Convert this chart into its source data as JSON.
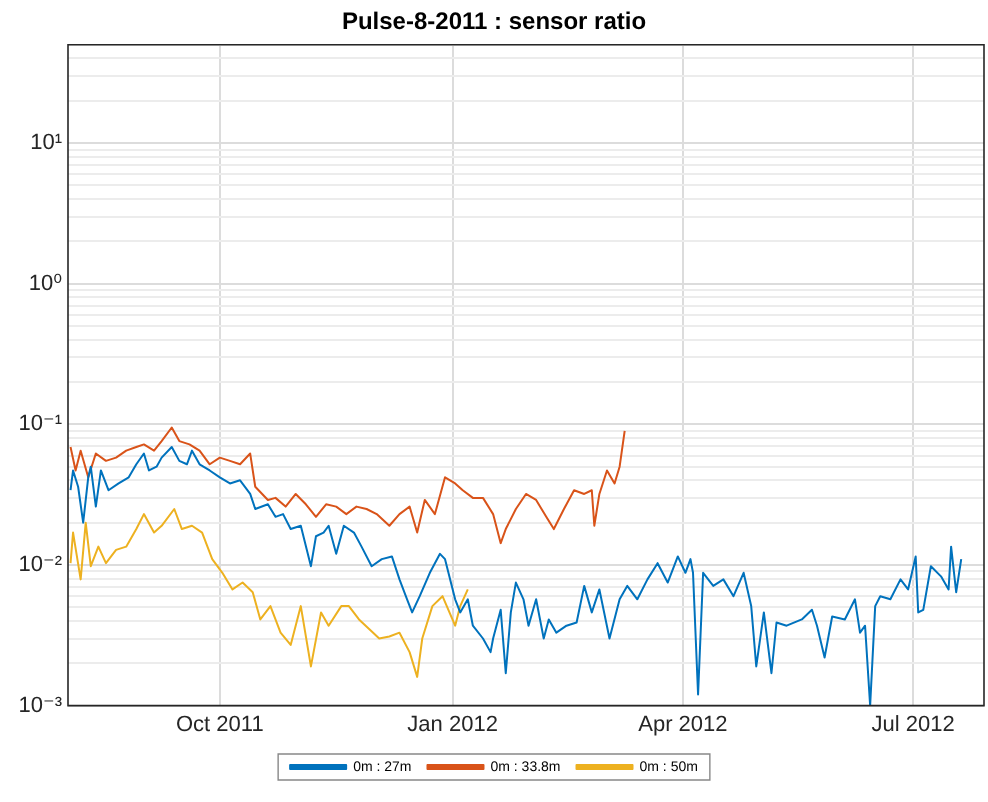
{
  "chart_data": {
    "type": "line",
    "title": "Pulse-8-2011 : sensor ratio",
    "log": "y",
    "grid": true,
    "legend": "bottom",
    "marker": "none",
    "xlim": [
      "2011-08-02",
      "2012-07-29"
    ],
    "xticks": [
      {
        "value": "2011-10-01",
        "label": "Oct 2011"
      },
      {
        "value": "2012-01-01",
        "label": "Jan 2012"
      },
      {
        "value": "2012-04-01",
        "label": "Apr 2012"
      },
      {
        "value": "2012-07-01",
        "label": "Jul 2012"
      }
    ],
    "ylim": [
      0.001,
      50
    ],
    "yticks": [
      {
        "value": 0.001,
        "label": "10⁻³"
      },
      {
        "value": 0.002,
        "label": null
      },
      {
        "value": 0.003,
        "label": null
      },
      {
        "value": 0.004,
        "label": null
      },
      {
        "value": 0.005,
        "label": null
      },
      {
        "value": 0.006,
        "label": null
      },
      {
        "value": 0.007,
        "label": null
      },
      {
        "value": 0.008,
        "label": null
      },
      {
        "value": 0.009,
        "label": null
      },
      {
        "value": 0.01,
        "label": "10⁻²"
      },
      {
        "value": 0.02,
        "label": null
      },
      {
        "value": 0.03,
        "label": null
      },
      {
        "value": 0.04,
        "label": null
      },
      {
        "value": 0.05,
        "label": null
      },
      {
        "value": 0.06,
        "label": null
      },
      {
        "value": 0.07,
        "label": null
      },
      {
        "value": 0.08,
        "label": null
      },
      {
        "value": 0.09,
        "label": null
      },
      {
        "value": 0.1,
        "label": "10⁻¹"
      },
      {
        "value": 0.2,
        "label": null
      },
      {
        "value": 0.3,
        "label": null
      },
      {
        "value": 0.4,
        "label": null
      },
      {
        "value": 0.5,
        "label": null
      },
      {
        "value": 0.6,
        "label": null
      },
      {
        "value": 0.7,
        "label": null
      },
      {
        "value": 0.8,
        "label": null
      },
      {
        "value": 0.9,
        "label": null
      },
      {
        "value": 1,
        "label": "10⁰"
      },
      {
        "value": 2,
        "label": null
      },
      {
        "value": 3,
        "label": null
      },
      {
        "value": 4,
        "label": null
      },
      {
        "value": 5,
        "label": null
      },
      {
        "value": 6,
        "label": null
      },
      {
        "value": 7,
        "label": null
      },
      {
        "value": 8,
        "label": null
      },
      {
        "value": 9,
        "label": null
      },
      {
        "value": 10,
        "label": "10¹"
      },
      {
        "value": 20,
        "label": null
      },
      {
        "value": 30,
        "label": null
      },
      {
        "value": 40,
        "label": null
      },
      {
        "value": 50,
        "label": null
      }
    ],
    "series": [
      {
        "name": "0m : 27m",
        "color": "#0072bd",
        "x": [
          "2011-08-03",
          "2011-08-04",
          "2011-08-06",
          "2011-08-08",
          "2011-08-10",
          "2011-08-11",
          "2011-08-13",
          "2011-08-15",
          "2011-08-18",
          "2011-08-22",
          "2011-08-26",
          "2011-08-29",
          "2011-09-01",
          "2011-09-03",
          "2011-09-06",
          "2011-09-08",
          "2011-09-12",
          "2011-09-15",
          "2011-09-18",
          "2011-09-20",
          "2011-09-23",
          "2011-09-27",
          "2011-10-01",
          "2011-10-05",
          "2011-10-09",
          "2011-10-13",
          "2011-10-15",
          "2011-10-20",
          "2011-10-23",
          "2011-10-26",
          "2011-10-29",
          "2011-11-02",
          "2011-11-06",
          "2011-11-08",
          "2011-11-11",
          "2011-11-13",
          "2011-11-16",
          "2011-11-19",
          "2011-11-23",
          "2011-11-26",
          "2011-11-30",
          "2011-12-04",
          "2011-12-08",
          "2011-12-11",
          "2011-12-14",
          "2011-12-16",
          "2011-12-19",
          "2011-12-23",
          "2011-12-27",
          "2011-12-29",
          "2012-01-02",
          "2012-01-04",
          "2012-01-07",
          "2012-01-09",
          "2012-01-13",
          "2012-01-16",
          "2012-01-17",
          "2012-01-20",
          "2012-01-22",
          "2012-01-24",
          "2012-01-26",
          "2012-01-29",
          "2012-01-31",
          "2012-02-03",
          "2012-02-06",
          "2012-02-08",
          "2012-02-11",
          "2012-02-15",
          "2012-02-19",
          "2012-02-22",
          "2012-02-25",
          "2012-02-28",
          "2012-03-03",
          "2012-03-07",
          "2012-03-10",
          "2012-03-14",
          "2012-03-18",
          "2012-03-22",
          "2012-03-26",
          "2012-03-30",
          "2012-04-02",
          "2012-04-04",
          "2012-04-05",
          "2012-04-07",
          "2012-04-09",
          "2012-04-13",
          "2012-04-17",
          "2012-04-21",
          "2012-04-25",
          "2012-04-28",
          "2012-04-30",
          "2012-05-03",
          "2012-05-06",
          "2012-05-08",
          "2012-05-12",
          "2012-05-18",
          "2012-05-22",
          "2012-05-24",
          "2012-05-27",
          "2012-05-30",
          "2012-06-04",
          "2012-06-08",
          "2012-06-10",
          "2012-06-12",
          "2012-06-14",
          "2012-06-16",
          "2012-06-18",
          "2012-06-22",
          "2012-06-26",
          "2012-06-29",
          "2012-07-02",
          "2012-07-03",
          "2012-07-05",
          "2012-07-08",
          "2012-07-12",
          "2012-07-15",
          "2012-07-16",
          "2012-07-18",
          "2012-07-20"
        ],
        "values": [
          0.034,
          0.047,
          0.036,
          0.02,
          0.042,
          0.05,
          0.026,
          0.047,
          0.034,
          0.038,
          0.042,
          0.052,
          0.062,
          0.047,
          0.05,
          0.058,
          0.069,
          0.055,
          0.052,
          0.065,
          0.052,
          0.047,
          0.042,
          0.038,
          0.04,
          0.032,
          0.025,
          0.027,
          0.022,
          0.023,
          0.018,
          0.019,
          0.0098,
          0.016,
          0.017,
          0.019,
          0.012,
          0.019,
          0.017,
          0.0135,
          0.0098,
          0.011,
          0.0115,
          0.0079,
          0.0057,
          0.0046,
          0.006,
          0.0088,
          0.012,
          0.011,
          0.0057,
          0.0046,
          0.0057,
          0.0037,
          0.003,
          0.0024,
          0.003,
          0.0048,
          0.0017,
          0.0046,
          0.0075,
          0.0057,
          0.0037,
          0.0057,
          0.003,
          0.0041,
          0.0033,
          0.0037,
          0.0039,
          0.0071,
          0.0046,
          0.0067,
          0.003,
          0.0057,
          0.0071,
          0.0057,
          0.0079,
          0.0103,
          0.0075,
          0.0115,
          0.0088,
          0.011,
          0.0088,
          0.0012,
          0.0088,
          0.0071,
          0.0079,
          0.006,
          0.0088,
          0.0051,
          0.0019,
          0.0046,
          0.0017,
          0.0039,
          0.0037,
          0.0041,
          0.0048,
          0.0037,
          0.0022,
          0.0043,
          0.0041,
          0.0057,
          0.0033,
          0.0037,
          0.001,
          0.0051,
          0.006,
          0.0057,
          0.0079,
          0.0067,
          0.0115,
          0.0046,
          0.0048,
          0.0098,
          0.0083,
          0.0067,
          0.0135,
          0.0064,
          0.011
        ]
      },
      {
        "name": "0m : 33.8m",
        "color": "#d95319",
        "x": [
          "2011-08-03",
          "2011-08-05",
          "2011-08-07",
          "2011-08-10",
          "2011-08-13",
          "2011-08-17",
          "2011-08-21",
          "2011-08-25",
          "2011-08-29",
          "2011-09-01",
          "2011-09-05",
          "2011-09-08",
          "2011-09-12",
          "2011-09-15",
          "2011-09-19",
          "2011-09-23",
          "2011-09-27",
          "2011-10-01",
          "2011-10-05",
          "2011-10-09",
          "2011-10-13",
          "2011-10-15",
          "2011-10-20",
          "2011-10-23",
          "2011-10-27",
          "2011-10-31",
          "2011-11-04",
          "2011-11-08",
          "2011-11-12",
          "2011-11-16",
          "2011-11-20",
          "2011-11-24",
          "2011-11-28",
          "2011-12-02",
          "2011-12-07",
          "2011-12-11",
          "2011-12-15",
          "2011-12-18",
          "2011-12-21",
          "2011-12-25",
          "2011-12-29",
          "2012-01-02",
          "2012-01-05",
          "2012-01-09",
          "2012-01-13",
          "2012-01-17",
          "2012-01-20",
          "2012-01-22",
          "2012-01-26",
          "2012-01-30",
          "2012-02-03",
          "2012-02-07",
          "2012-02-10",
          "2012-02-14",
          "2012-02-18",
          "2012-02-22",
          "2012-02-25",
          "2012-02-26",
          "2012-02-28",
          "2012-03-02",
          "2012-03-05",
          "2012-03-07",
          "2012-03-09"
        ],
        "values": [
          0.069,
          0.047,
          0.065,
          0.042,
          0.062,
          0.055,
          0.058,
          0.065,
          0.069,
          0.072,
          0.065,
          0.076,
          0.095,
          0.076,
          0.072,
          0.065,
          0.052,
          0.058,
          0.055,
          0.052,
          0.062,
          0.036,
          0.029,
          0.03,
          0.026,
          0.032,
          0.027,
          0.022,
          0.027,
          0.026,
          0.023,
          0.026,
          0.025,
          0.023,
          0.019,
          0.023,
          0.026,
          0.017,
          0.029,
          0.023,
          0.042,
          0.038,
          0.034,
          0.03,
          0.03,
          0.023,
          0.0143,
          0.018,
          0.025,
          0.032,
          0.029,
          0.022,
          0.018,
          0.025,
          0.034,
          0.032,
          0.034,
          0.019,
          0.032,
          0.047,
          0.038,
          0.05,
          0.09
        ]
      },
      {
        "name": "0m : 50m",
        "color": "#edb120",
        "x": [
          "2011-08-03",
          "2011-08-04",
          "2011-08-07",
          "2011-08-09",
          "2011-08-11",
          "2011-08-14",
          "2011-08-17",
          "2011-08-21",
          "2011-08-25",
          "2011-08-29",
          "2011-09-01",
          "2011-09-05",
          "2011-09-08",
          "2011-09-13",
          "2011-09-16",
          "2011-09-20",
          "2011-09-24",
          "2011-09-28",
          "2011-10-02",
          "2011-10-06",
          "2011-10-10",
          "2011-10-14",
          "2011-10-17",
          "2011-10-21",
          "2011-10-25",
          "2011-10-29",
          "2011-11-02",
          "2011-11-06",
          "2011-11-10",
          "2011-11-13",
          "2011-11-18",
          "2011-11-21",
          "2011-11-25",
          "2011-11-29",
          "2011-12-03",
          "2011-12-07",
          "2011-12-11",
          "2011-12-15",
          "2011-12-18",
          "2011-12-20",
          "2011-12-24",
          "2011-12-28",
          "2012-01-02",
          "2012-01-04",
          "2012-01-07"
        ],
        "values": [
          0.0103,
          0.017,
          0.0079,
          0.02,
          0.0098,
          0.0135,
          0.0103,
          0.0128,
          0.0135,
          0.018,
          0.023,
          0.017,
          0.019,
          0.025,
          0.018,
          0.019,
          0.017,
          0.011,
          0.0088,
          0.0067,
          0.0075,
          0.0064,
          0.0041,
          0.0051,
          0.0033,
          0.0027,
          0.0051,
          0.0019,
          0.0046,
          0.0037,
          0.0051,
          0.0051,
          0.0041,
          0.0035,
          0.003,
          0.0031,
          0.0033,
          0.0024,
          0.0016,
          0.003,
          0.0051,
          0.006,
          0.0037,
          0.0051,
          0.0067
        ]
      }
    ]
  }
}
